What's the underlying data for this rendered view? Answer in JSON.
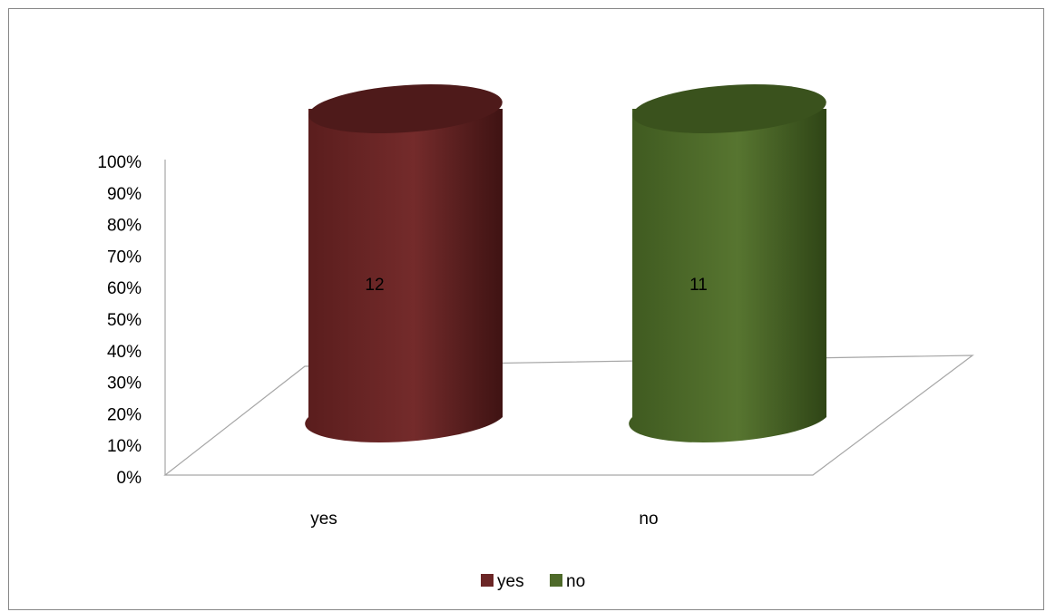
{
  "chart_data": {
    "type": "bar",
    "style": "3d-cylinder",
    "categories": [
      "yes",
      "no"
    ],
    "series": [
      {
        "name": "yes",
        "category": "yes",
        "value": 12,
        "percent": 100,
        "color": "#6b2626"
      },
      {
        "name": "no",
        "category": "no",
        "value": 11,
        "percent": 100,
        "color": "#4e6a2a"
      }
    ],
    "data_labels": [
      "12",
      "11"
    ],
    "y_ticks": [
      "0%",
      "10%",
      "20%",
      "30%",
      "40%",
      "50%",
      "60%",
      "70%",
      "80%",
      "90%",
      "100%"
    ],
    "ylim": [
      0,
      100
    ],
    "grid": false,
    "legend_position": "bottom",
    "legend": [
      {
        "label": "yes",
        "color": "#6b2626"
      },
      {
        "label": "no",
        "color": "#4e6a2a"
      }
    ],
    "colors": {
      "axis": "#a6a6a6",
      "yes_fill": "#6b2626",
      "no_fill": "#4e6a2a"
    }
  }
}
